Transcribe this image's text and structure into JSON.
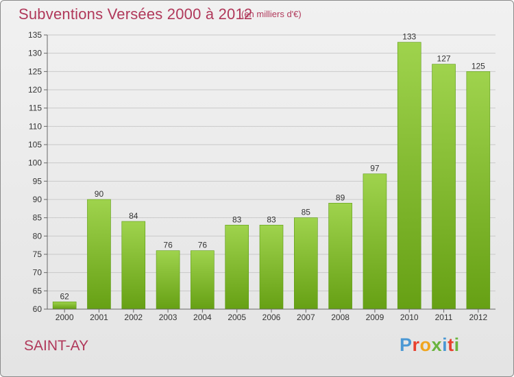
{
  "header": {
    "title": "Subventions Versées 2000 à 2012",
    "subtitle": "(en milliers d'€)"
  },
  "footer": {
    "city": "SAINT-AY",
    "logo_text": "Proxiti",
    "logo_colors": [
      "#4a98d4",
      "#e8402e",
      "#f0a51e",
      "#6ab43e",
      "#4a98d4",
      "#e8402e",
      "#6ab43e"
    ]
  },
  "colors": {
    "bar_light": "#9fd34d",
    "bar_dark": "#66a014",
    "title": "#b0385a"
  },
  "chart_data": {
    "type": "bar",
    "categories": [
      "2000",
      "2001",
      "2002",
      "2003",
      "2004",
      "2005",
      "2006",
      "2007",
      "2008",
      "2009",
      "2010",
      "2011",
      "2012"
    ],
    "values": [
      62,
      90,
      84,
      76,
      76,
      83,
      83,
      85,
      89,
      97,
      133,
      127,
      125
    ],
    "title": "Subventions Versées 2000 à 2012",
    "subtitle": "(en milliers d'€)",
    "ylim": [
      60,
      135
    ],
    "yticks": [
      60,
      65,
      70,
      75,
      80,
      85,
      90,
      95,
      100,
      105,
      110,
      115,
      120,
      125,
      130,
      135
    ],
    "grid": true,
    "data_labels": true
  }
}
